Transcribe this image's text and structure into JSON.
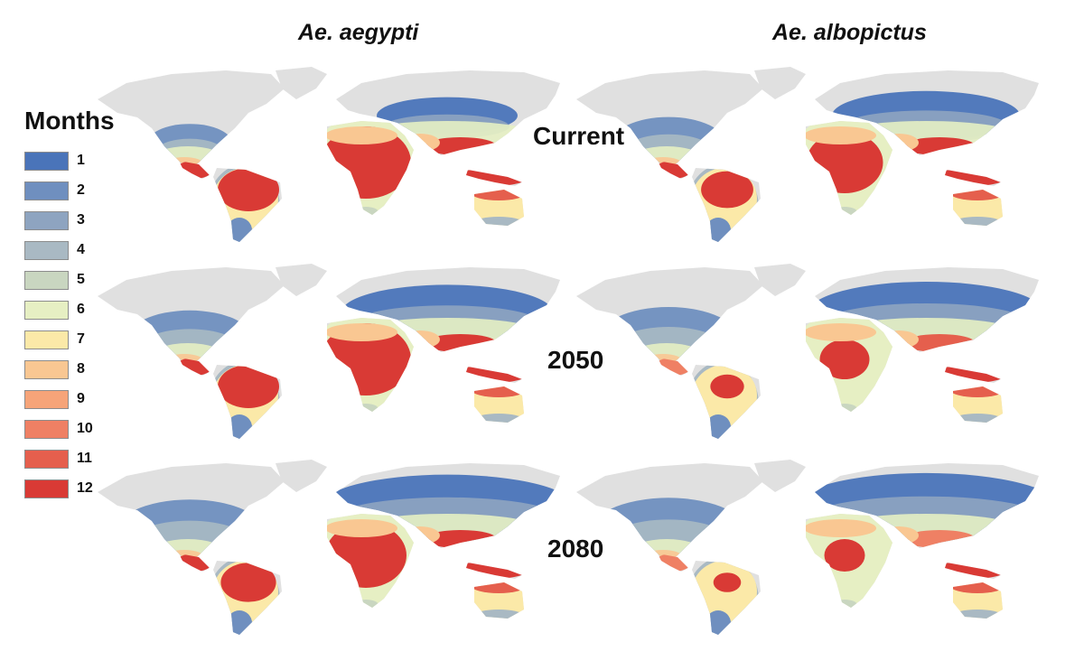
{
  "columns": [
    "Ae. aegypti",
    "Ae. albopictus"
  ],
  "rows": [
    "Current",
    "2050",
    "2080"
  ],
  "legend": {
    "title": "Months",
    "items": [
      {
        "label": "1",
        "color": "#4a74b9"
      },
      {
        "label": "2",
        "color": "#6f8fbf"
      },
      {
        "label": "3",
        "color": "#8ea4c0"
      },
      {
        "label": "4",
        "color": "#a9b9c3"
      },
      {
        "label": "5",
        "color": "#c9d6c0"
      },
      {
        "label": "6",
        "color": "#e6efc3"
      },
      {
        "label": "7",
        "color": "#fbe9a8"
      },
      {
        "label": "8",
        "color": "#f9c792"
      },
      {
        "label": "9",
        "color": "#f6a479"
      },
      {
        "label": "10",
        "color": "#ef8064"
      },
      {
        "label": "11",
        "color": "#e55f4d"
      },
      {
        "label": "12",
        "color": "#d93a35"
      }
    ]
  },
  "land_color": "#e0e0e0"
}
